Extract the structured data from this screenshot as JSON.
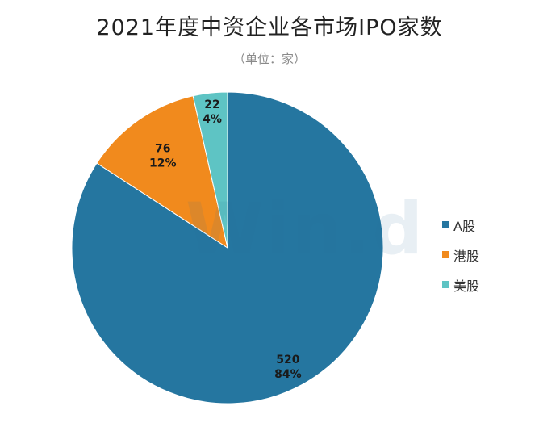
{
  "chart_data": {
    "type": "pie",
    "title": "2021年度中资企业各市场IPO家数",
    "subtitle": "（单位：家）",
    "categories": [
      "A股",
      "港股",
      "美股"
    ],
    "values": [
      520,
      76,
      22
    ],
    "percents": [
      "84%",
      "12%",
      "4%"
    ],
    "colors": [
      "#2576a0",
      "#f18a1d",
      "#5ec4c4"
    ],
    "legend_position": "right"
  },
  "watermark": "Win.d"
}
